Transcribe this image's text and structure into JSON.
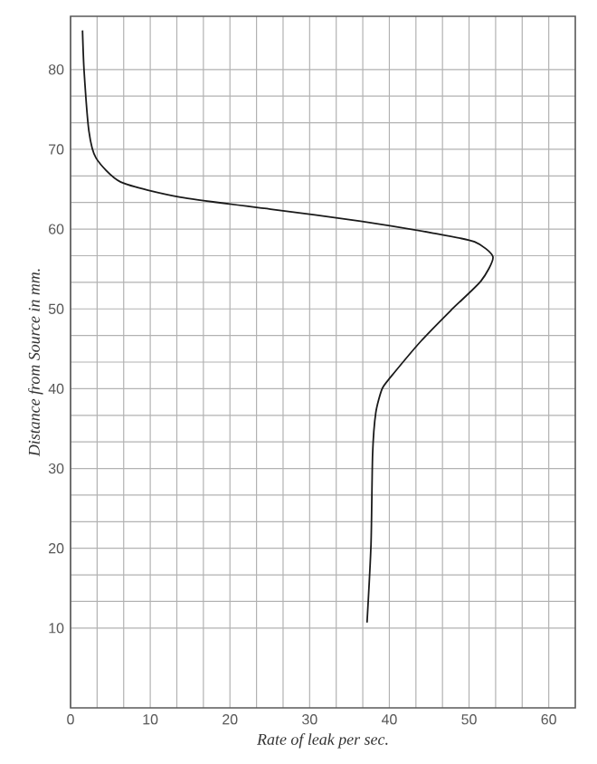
{
  "chart_data": {
    "type": "line",
    "xlabel": "Rate of leak per sec.",
    "ylabel": "Distance from Source in mm.",
    "xlim": [
      0,
      63.33
    ],
    "ylim": [
      0,
      86.67
    ],
    "xticks": [
      0,
      10,
      20,
      30,
      40,
      50,
      60
    ],
    "yticks": [
      10,
      20,
      30,
      40,
      50,
      60,
      70,
      80
    ],
    "grid": true,
    "series": [
      {
        "color": "#1a1a1a",
        "x": [
          1.5,
          1.7,
          2.3,
          3.2,
          6.3,
          13.8,
          25.1,
          36.4,
          45.5,
          50.7,
          53.0,
          51.5,
          47.7,
          44.0,
          40.2,
          39.1,
          38.3,
          37.9,
          37.7,
          37.2
        ],
        "values": [
          84.9,
          79.8,
          72.3,
          68.9,
          65.9,
          64.0,
          62.5,
          61.0,
          59.5,
          58.4,
          56.5,
          53.5,
          49.8,
          46.0,
          41.5,
          40.0,
          37.0,
          31.8,
          20.5,
          10.7
        ]
      }
    ]
  }
}
